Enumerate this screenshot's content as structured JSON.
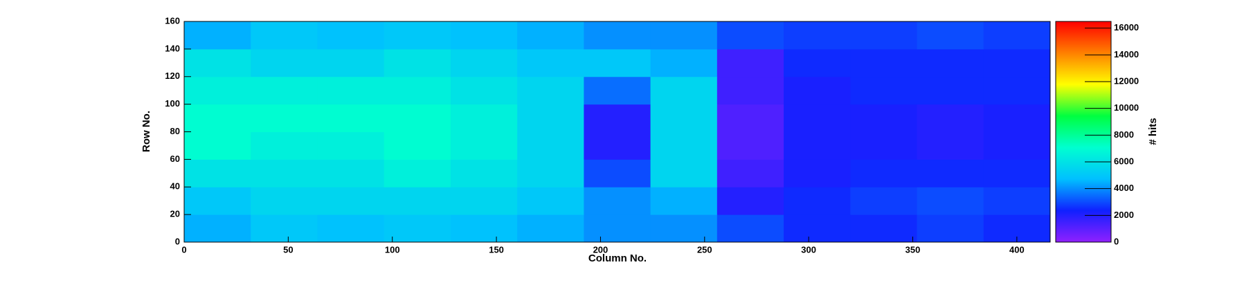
{
  "chart_data": {
    "type": "heatmap",
    "x_label": "Column No.",
    "y_label": "Row No.",
    "z_label": "# hits",
    "xbins": [
      0,
      32,
      64,
      96,
      128,
      160,
      192,
      224,
      256,
      288,
      320,
      352,
      384,
      416
    ],
    "ybins": [
      0,
      20,
      40,
      60,
      80,
      100,
      120,
      140,
      160
    ],
    "z": [
      [
        4500,
        5000,
        4800,
        5000,
        4800,
        4500,
        4000,
        4000,
        3000,
        2500,
        2500,
        2800,
        2500
      ],
      [
        5000,
        5500,
        5500,
        5500,
        5500,
        5000,
        4000,
        4500,
        2000,
        2500,
        2800,
        3000,
        2800
      ],
      [
        6000,
        6000,
        6000,
        6500,
        6000,
        5500,
        3000,
        5500,
        1500,
        2200,
        2500,
        2500,
        2500
      ],
      [
        7000,
        6500,
        6500,
        7000,
        6500,
        5500,
        2000,
        5500,
        1200,
        2200,
        2200,
        2000,
        2200
      ],
      [
        7000,
        7000,
        7000,
        7000,
        6500,
        5500,
        2000,
        5500,
        1200,
        2200,
        2200,
        2000,
        2200
      ],
      [
        6500,
        6500,
        6500,
        6500,
        6000,
        5500,
        3500,
        5500,
        1500,
        2200,
        2500,
        2500,
        2500
      ],
      [
        6000,
        5500,
        5500,
        6000,
        5500,
        5000,
        5000,
        4500,
        1500,
        2500,
        2500,
        2500,
        2500
      ],
      [
        4500,
        5000,
        4800,
        5000,
        4800,
        4500,
        4000,
        4000,
        3000,
        2800,
        2800,
        3000,
        2800
      ]
    ],
    "xlim": [
      0,
      416
    ],
    "ylim": [
      0,
      160
    ],
    "zlim": [
      0,
      16500
    ],
    "xticks": [
      0,
      50,
      100,
      150,
      200,
      250,
      300,
      350,
      400
    ],
    "yticks": [
      0,
      20,
      40,
      60,
      80,
      100,
      120,
      140,
      160
    ],
    "zticks": [
      0,
      2000,
      4000,
      6000,
      8000,
      10000,
      12000,
      14000,
      16000
    ],
    "colormap": [
      "#9020ff",
      "#1020ff",
      "#00c0ff",
      "#00ffd0",
      "#00ff40",
      "#ffff00",
      "#ff8000",
      "#ff0000"
    ]
  }
}
